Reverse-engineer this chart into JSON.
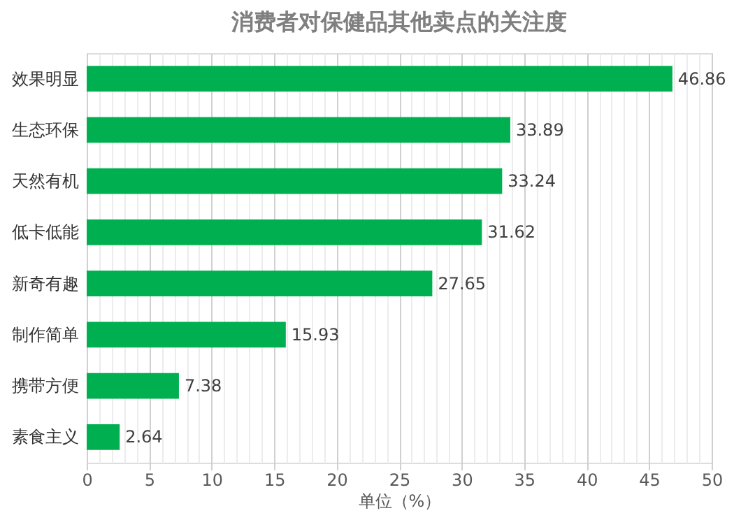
{
  "chart_data": {
    "type": "bar",
    "orientation": "horizontal",
    "title": "消费者对保健品其他卖点的关注度",
    "xlabel": "单位（%）",
    "categories": [
      "效果明显",
      "生态环保",
      "天然有机",
      "低卡低能",
      "新奇有趣",
      "制作简单",
      "携带方便",
      "素食主义"
    ],
    "values": [
      46.86,
      33.89,
      33.24,
      31.62,
      27.65,
      15.93,
      7.38,
      2.64
    ],
    "color": "#00b050",
    "data_labels": true,
    "grid": "x",
    "xlim": [
      0,
      50
    ],
    "xticks": [
      0,
      {
        "value": 1,
        "label": null
      },
      {
        "value": 2,
        "label": null
      },
      {
        "value": 3,
        "label": null
      },
      {
        "value": 4,
        "label": null
      },
      5,
      {
        "value": 6,
        "label": null
      },
      {
        "value": 7,
        "label": null
      },
      {
        "value": 8,
        "label": null
      },
      {
        "value": 9,
        "label": null
      },
      10,
      {
        "value": 11,
        "label": null
      },
      {
        "value": 12,
        "label": null
      },
      {
        "value": 13,
        "label": null
      },
      {
        "value": 14,
        "label": null
      },
      15,
      {
        "value": 16,
        "label": null
      },
      {
        "value": 17,
        "label": null
      },
      {
        "value": 18,
        "label": null
      },
      {
        "value": 19,
        "label": null
      },
      20,
      {
        "value": 21,
        "label": null
      },
      {
        "value": 22,
        "label": null
      },
      {
        "value": 23,
        "label": null
      },
      {
        "value": 24,
        "label": null
      },
      25,
      {
        "value": 26,
        "label": null
      },
      {
        "value": 27,
        "label": null
      },
      {
        "value": 28,
        "label": null
      },
      {
        "value": 29,
        "label": null
      },
      30,
      {
        "value": 31,
        "label": null
      },
      {
        "value": 32,
        "label": null
      },
      {
        "value": 33,
        "label": null
      },
      {
        "value": 34,
        "label": null
      },
      35,
      {
        "value": 36,
        "label": null
      },
      {
        "value": 37,
        "label": null
      },
      {
        "value": 38,
        "label": null
      },
      {
        "value": 39,
        "label": null
      },
      40,
      {
        "value": 41,
        "label": null
      },
      {
        "value": 42,
        "label": null
      },
      {
        "value": 43,
        "label": null
      },
      {
        "value": 44,
        "label": null
      },
      45,
      {
        "value": 46,
        "label": null
      },
      {
        "value": 47,
        "label": null
      },
      {
        "value": 48,
        "label": null
      },
      {
        "value": 49,
        "label": null
      },
      50
    ]
  }
}
